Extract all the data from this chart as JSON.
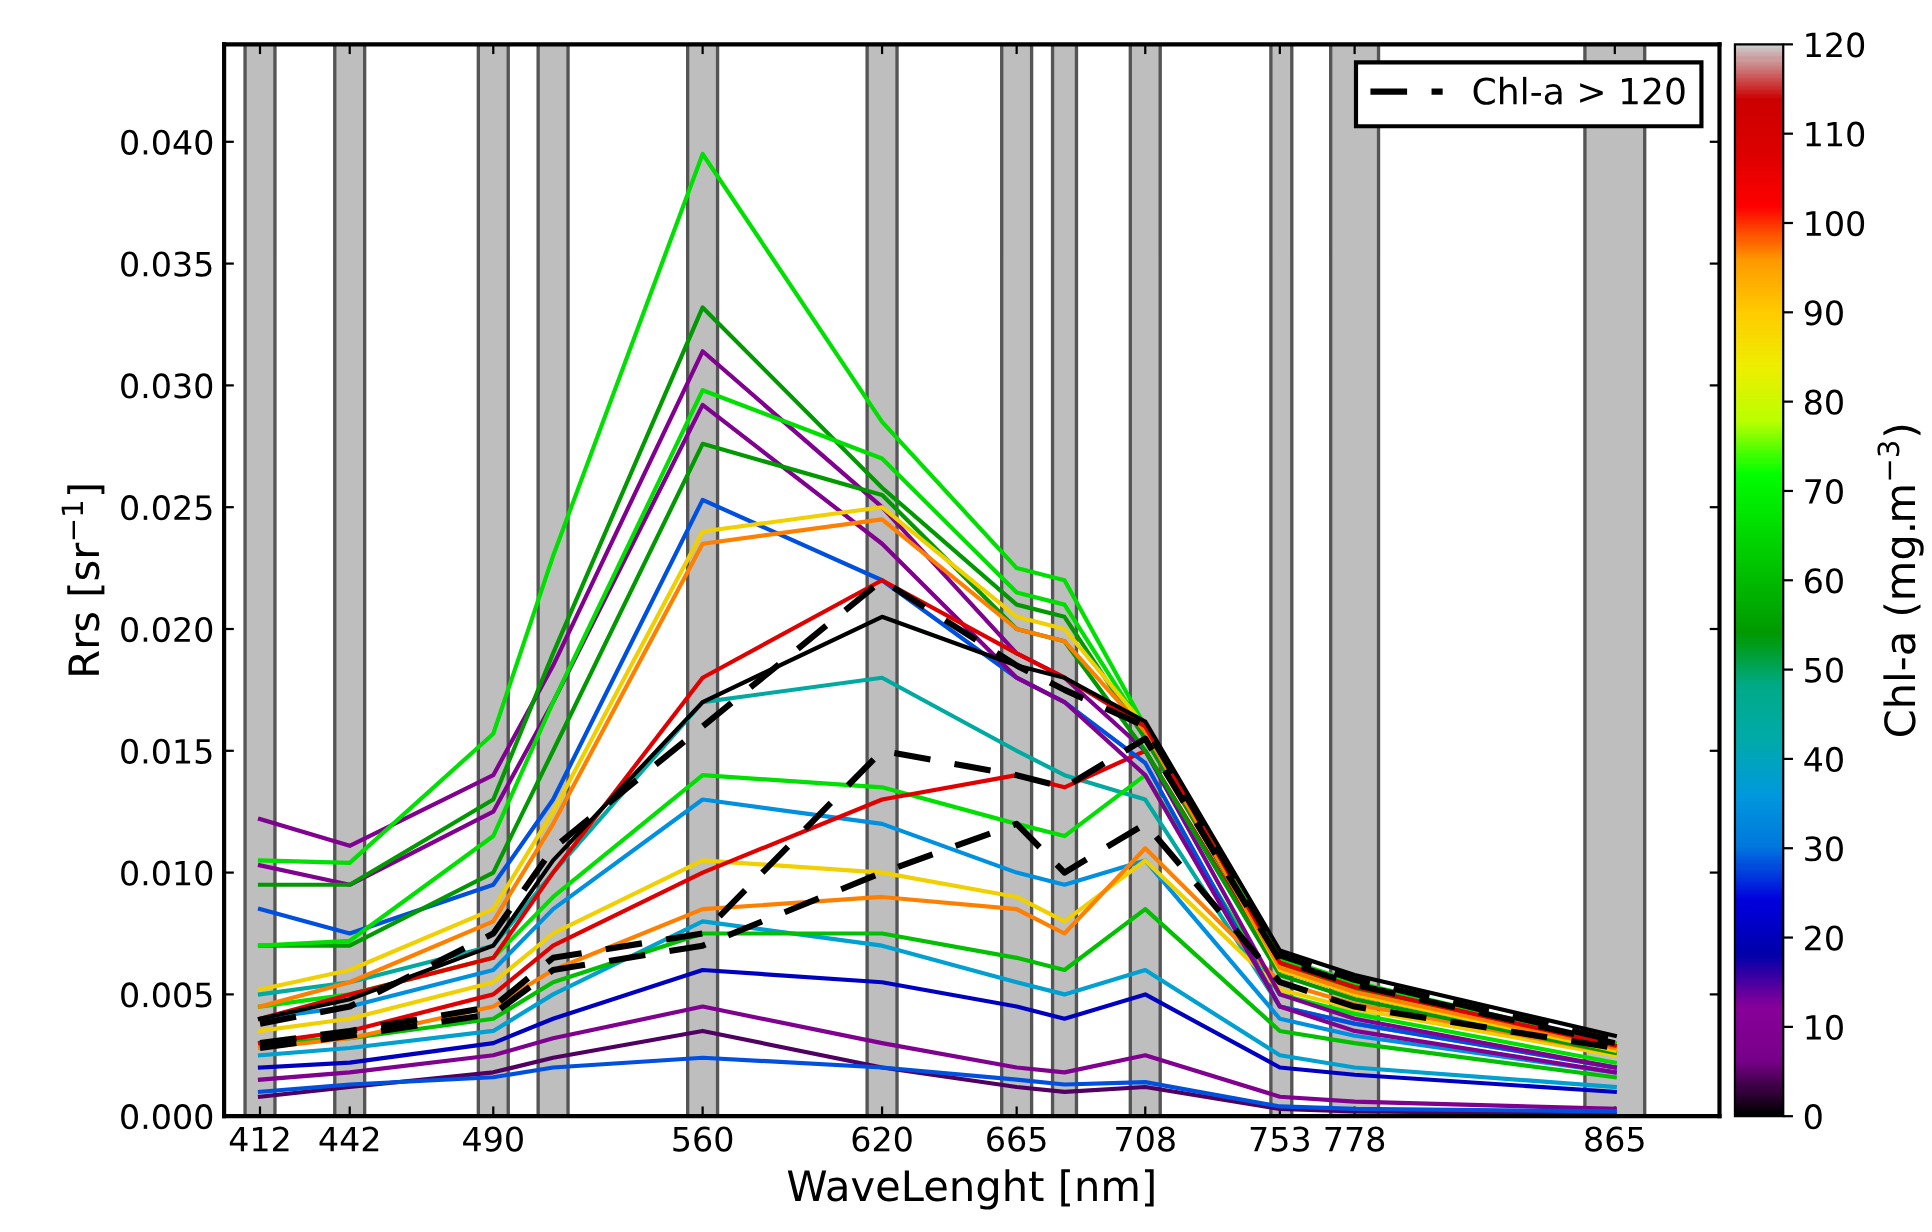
{
  "chart_data": {
    "type": "line",
    "xlabel": "WaveLenght [nm]",
    "ylabel": "Rrs [sr$^{−1}$]",
    "clabel": "Chl-a (mg.m$^{−3}$)",
    "x": [
      412,
      442,
      490,
      510,
      560,
      620,
      665,
      681,
      708,
      753,
      778,
      865
    ],
    "xlim": [
      400,
      900
    ],
    "ylim": [
      0,
      0.044
    ],
    "xticks": [
      412,
      442,
      490,
      560,
      620,
      665,
      708,
      753,
      778,
      865
    ],
    "yticks": [
      {
        "value": 0,
        "label": "0.000"
      },
      {
        "value": 0.005,
        "label": "0.005"
      },
      {
        "value": 0.01,
        "label": "0.010"
      },
      {
        "value": 0.015,
        "label": "0.015"
      },
      {
        "value": 0.02,
        "label": "0.020"
      },
      {
        "value": 0.025,
        "label": "0.025"
      },
      {
        "value": 0.03,
        "label": "0.030"
      },
      {
        "value": 0.035,
        "label": "0.035"
      },
      {
        "value": 0.04,
        "label": "0.040"
      }
    ],
    "clim": [
      0,
      120
    ],
    "cticks": [
      0,
      10,
      20,
      30,
      40,
      50,
      60,
      70,
      80,
      90,
      100,
      110,
      120
    ],
    "grid": false,
    "legend": "top right",
    "bands": [
      {
        "axis": "x",
        "from": 407,
        "to": 417,
        "color": "#bebebe"
      },
      {
        "axis": "x",
        "from": 437,
        "to": 447,
        "color": "#bebebe"
      },
      {
        "axis": "x",
        "from": 485,
        "to": 495,
        "color": "#bebebe"
      },
      {
        "axis": "x",
        "from": 505,
        "to": 515,
        "color": "#bebebe"
      },
      {
        "axis": "x",
        "from": 555,
        "to": 565,
        "color": "#bebebe"
      },
      {
        "axis": "x",
        "from": 615,
        "to": 625,
        "color": "#bebebe"
      },
      {
        "axis": "x",
        "from": 660,
        "to": 670,
        "color": "#bebebe"
      },
      {
        "axis": "x",
        "from": 677,
        "to": 685,
        "color": "#bebebe"
      },
      {
        "axis": "x",
        "from": 703,
        "to": 713,
        "color": "#bebebe"
      },
      {
        "axis": "x",
        "from": 750,
        "to": 757,
        "color": "#bebebe"
      },
      {
        "axis": "x",
        "from": 770,
        "to": 786,
        "color": "#bebebe"
      },
      {
        "axis": "x",
        "from": 855,
        "to": 875,
        "color": "#bebebe"
      }
    ],
    "series": [
      {
        "color": "#0000c0",
        "values": [
          0.002,
          0.0022,
          0.003,
          0.004,
          0.006,
          0.0055,
          0.0045,
          0.004,
          0.005,
          0.002,
          0.0017,
          0.001
        ]
      },
      {
        "color": "#800090",
        "values": [
          0.0015,
          0.0018,
          0.0025,
          0.0032,
          0.0045,
          0.003,
          0.002,
          0.0018,
          0.0025,
          0.0008,
          0.0006,
          0.0003
        ]
      },
      {
        "color": "#500060",
        "values": [
          0.0008,
          0.0012,
          0.0018,
          0.0024,
          0.0035,
          0.002,
          0.0012,
          0.001,
          0.0012,
          0.0003,
          0.0002,
          0.0001
        ]
      },
      {
        "color": "#0050e0",
        "values": [
          0.001,
          0.0013,
          0.0016,
          0.002,
          0.0024,
          0.002,
          0.0015,
          0.0013,
          0.0014,
          0.0004,
          0.0003,
          0.0002
        ]
      },
      {
        "color": "#00a0d0",
        "values": [
          0.0025,
          0.0028,
          0.0035,
          0.005,
          0.008,
          0.007,
          0.0055,
          0.005,
          0.006,
          0.0025,
          0.002,
          0.0012
        ]
      },
      {
        "color": "#00c000",
        "values": [
          0.003,
          0.0032,
          0.004,
          0.0055,
          0.0075,
          0.0075,
          0.0065,
          0.006,
          0.0085,
          0.0035,
          0.003,
          0.0016
        ]
      },
      {
        "color": "#0090e0",
        "values": [
          0.004,
          0.0045,
          0.006,
          0.0085,
          0.013,
          0.012,
          0.01,
          0.0095,
          0.0105,
          0.004,
          0.0033,
          0.0018
        ]
      },
      {
        "color": "#00aaa0",
        "values": [
          0.005,
          0.0055,
          0.007,
          0.01,
          0.017,
          0.018,
          0.015,
          0.014,
          0.013,
          0.0045,
          0.0038,
          0.002
        ]
      },
      {
        "color": "#00e000",
        "values": [
          0.0045,
          0.005,
          0.0065,
          0.009,
          0.014,
          0.0135,
          0.012,
          0.0115,
          0.014,
          0.005,
          0.0042,
          0.0022
        ]
      },
      {
        "color": "#f0d000",
        "values": [
          0.0035,
          0.004,
          0.0055,
          0.0075,
          0.0105,
          0.01,
          0.009,
          0.008,
          0.0105,
          0.0052,
          0.0044,
          0.0025
        ]
      },
      {
        "color": "#ff8000",
        "values": [
          0.0028,
          0.0032,
          0.0045,
          0.006,
          0.0085,
          0.009,
          0.0085,
          0.0075,
          0.011,
          0.0055,
          0.0046,
          0.0026
        ]
      },
      {
        "color": "#e00000",
        "values": [
          0.003,
          0.0035,
          0.005,
          0.007,
          0.01,
          0.013,
          0.014,
          0.0135,
          0.015,
          0.006,
          0.005,
          0.0027
        ]
      },
      {
        "color": "#0050e0",
        "values": [
          0.0085,
          0.0075,
          0.0095,
          0.013,
          0.0253,
          0.022,
          0.018,
          0.017,
          0.0145,
          0.0045,
          0.0038,
          0.002
        ]
      },
      {
        "color": "#800090",
        "values": [
          0.0103,
          0.0095,
          0.0125,
          0.017,
          0.0292,
          0.0235,
          0.018,
          0.017,
          0.014,
          0.0045,
          0.0035,
          0.0018
        ]
      },
      {
        "color": "#800090",
        "values": [
          0.0122,
          0.0111,
          0.014,
          0.0185,
          0.0314,
          0.025,
          0.019,
          0.018,
          0.015,
          0.005,
          0.004,
          0.002
        ]
      },
      {
        "color": "#009900",
        "values": [
          0.007,
          0.007,
          0.01,
          0.015,
          0.0276,
          0.0255,
          0.02,
          0.0195,
          0.015,
          0.0058,
          0.0048,
          0.0026
        ]
      },
      {
        "color": "#009900",
        "values": [
          0.0095,
          0.0095,
          0.013,
          0.019,
          0.0332,
          0.0258,
          0.021,
          0.0205,
          0.0155,
          0.0062,
          0.0052,
          0.0028
        ]
      },
      {
        "color": "#00e000",
        "values": [
          0.007,
          0.0072,
          0.0115,
          0.017,
          0.0298,
          0.027,
          0.0215,
          0.021,
          0.0158,
          0.0064,
          0.0054,
          0.0029
        ]
      },
      {
        "color": "#00e000",
        "values": [
          0.0105,
          0.0104,
          0.0157,
          0.023,
          0.0395,
          0.0285,
          0.0225,
          0.022,
          0.016,
          0.0065,
          0.0055,
          0.003
        ]
      },
      {
        "color": "#f0d000",
        "values": [
          0.0052,
          0.006,
          0.0085,
          0.0125,
          0.024,
          0.025,
          0.0205,
          0.02,
          0.016,
          0.006,
          0.005,
          0.0027
        ]
      },
      {
        "color": "#ff8000",
        "values": [
          0.0045,
          0.0055,
          0.008,
          0.012,
          0.0235,
          0.0245,
          0.02,
          0.0195,
          0.0158,
          0.0061,
          0.0051,
          0.0028
        ]
      },
      {
        "color": "#e00000",
        "values": [
          0.004,
          0.005,
          0.0065,
          0.01,
          0.018,
          0.022,
          0.019,
          0.018,
          0.016,
          0.0063,
          0.0053,
          0.0029
        ]
      },
      {
        "color": "#000000",
        "values": [
          0.004,
          0.0048,
          0.007,
          0.0105,
          0.017,
          0.0205,
          0.0185,
          0.018,
          0.0162,
          0.0068,
          0.0058,
          0.0033
        ]
      },
      {
        "name": "Chl-a > 120",
        "color": "#000000",
        "line_style": "dashed",
        "values": [
          0.0038,
          0.0045,
          0.0075,
          0.011,
          0.016,
          0.022,
          0.0185,
          0.0175,
          0.016,
          0.0066,
          0.0056,
          0.0031
        ]
      },
      {
        "color": "#000000",
        "line_style": "dashed",
        "values": [
          0.003,
          0.0035,
          0.0045,
          0.0065,
          0.0075,
          0.015,
          0.014,
          0.0135,
          0.0155,
          0.0064,
          0.0054,
          0.003
        ]
      },
      {
        "color": "#000000",
        "line_style": "dashed",
        "values": [
          0.0028,
          0.0033,
          0.0042,
          0.006,
          0.007,
          0.01,
          0.012,
          0.01,
          0.012,
          0.0055,
          0.0045,
          0.0028
        ]
      }
    ]
  }
}
